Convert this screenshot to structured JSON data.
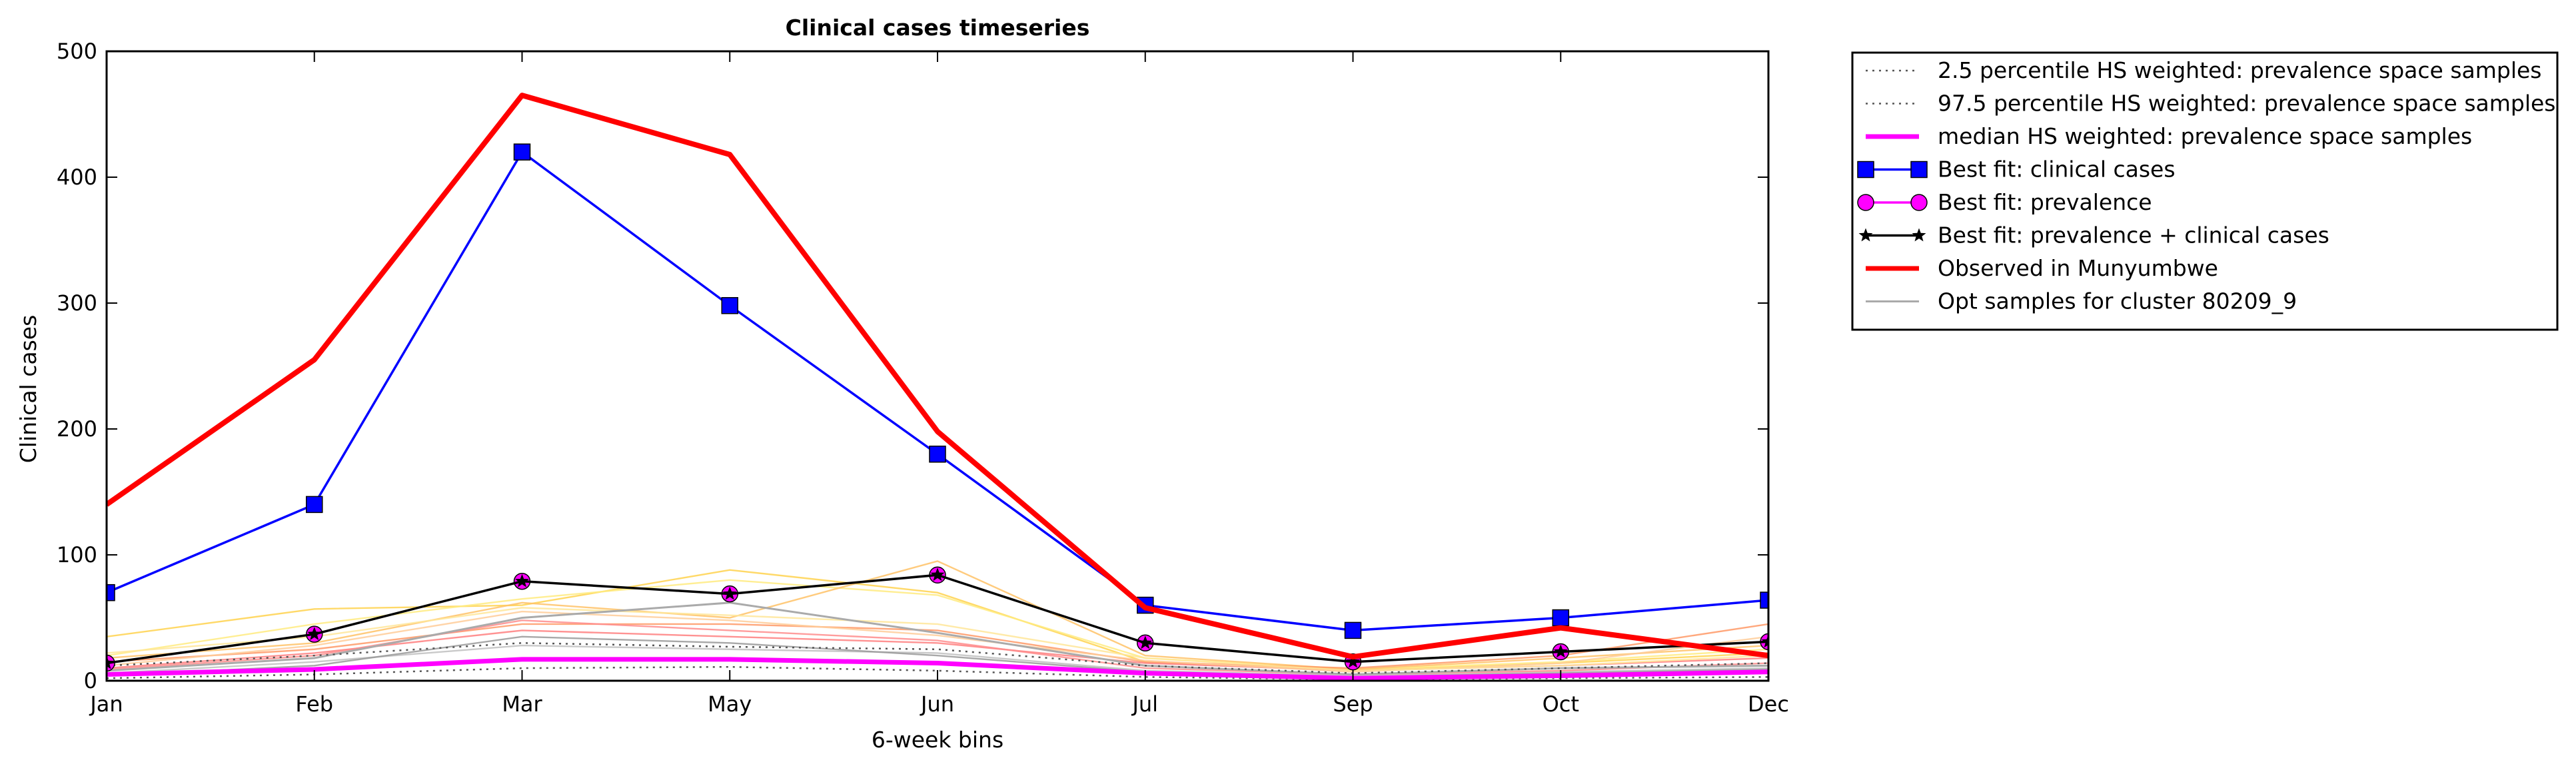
{
  "chart_data": {
    "type": "line",
    "title": "Clinical cases timeseries",
    "xlabel": "6-week bins",
    "ylabel": "Clinical cases",
    "categories": [
      "Jan",
      "Feb",
      "Mar",
      "May",
      "Jun",
      "Jul",
      "Sep",
      "Oct",
      "Dec"
    ],
    "ylim": [
      0,
      500
    ],
    "yticks": [
      0,
      100,
      200,
      300,
      400,
      500
    ],
    "grid": false,
    "legend_position": "outside-right",
    "series": [
      {
        "name": "2.5 percentile HS weighted: prevalence space samples",
        "style": "dotted",
        "color": "#555555",
        "values": [
          2,
          5,
          10,
          11,
          8,
          3,
          1,
          2,
          3
        ]
      },
      {
        "name": "97.5 percentile HS weighted: prevalence space samples",
        "style": "dotted",
        "color": "#555555",
        "values": [
          12,
          20,
          30,
          27,
          25,
          12,
          6,
          10,
          14
        ]
      },
      {
        "name": "median HS weighted: prevalence space samples",
        "style": "solid-thick",
        "color": "#ff00ff",
        "values": [
          5,
          9,
          17,
          17,
          14,
          6,
          2,
          4,
          7
        ]
      },
      {
        "name": "Best fit: clinical cases",
        "style": "square-markers",
        "color": "#0000ff",
        "values": [
          70,
          140,
          420,
          298,
          180,
          60,
          40,
          50,
          64
        ]
      },
      {
        "name": "Best fit: prevalence",
        "style": "circle-markers",
        "color": "#ff00ff",
        "values": [
          14,
          37,
          79,
          69,
          84,
          30,
          15,
          23,
          31
        ]
      },
      {
        "name": "Best fit: prevalence + clinical cases",
        "style": "star-markers",
        "color": "#000000",
        "values": [
          14,
          37,
          79,
          69,
          84,
          30,
          15,
          23,
          31
        ]
      },
      {
        "name": "Observed in Munyumbwe",
        "style": "solid-thick",
        "color": "#ff0000",
        "values": [
          140,
          255,
          465,
          418,
          198,
          58,
          19,
          42,
          20
        ]
      },
      {
        "name": "Opt samples for cluster 80209_9",
        "style": "thin",
        "color": "#aaaaaa",
        "values": [
          8,
          18,
          50,
          62,
          38,
          12,
          5,
          10,
          12
        ]
      }
    ],
    "sample_lines": [
      {
        "color": "#ffd24d",
        "values": [
          35,
          57,
          60,
          88,
          70,
          15,
          8,
          14,
          22
        ]
      },
      {
        "color": "#ffeb80",
        "values": [
          20,
          45,
          65,
          80,
          68,
          18,
          9,
          15,
          25
        ]
      },
      {
        "color": "#ffc266",
        "values": [
          18,
          30,
          62,
          50,
          95,
          20,
          9,
          18,
          28
        ]
      },
      {
        "color": "#ff9966",
        "values": [
          15,
          25,
          45,
          45,
          40,
          15,
          10,
          20,
          45
        ]
      },
      {
        "color": "#ff7f7f",
        "values": [
          10,
          22,
          40,
          35,
          30,
          14,
          8,
          12,
          18
        ]
      },
      {
        "color": "#ffcc99",
        "values": [
          12,
          28,
          55,
          48,
          36,
          16,
          7,
          14,
          35
        ]
      },
      {
        "color": "#c0c0c0",
        "values": [
          6,
          15,
          28,
          25,
          22,
          8,
          4,
          7,
          10
        ]
      },
      {
        "color": "#999999",
        "values": [
          4,
          12,
          35,
          30,
          20,
          7,
          3,
          6,
          9
        ]
      },
      {
        "color": "#ff8c8c",
        "values": [
          9,
          20,
          48,
          40,
          32,
          10,
          5,
          8,
          14
        ]
      },
      {
        "color": "#ffe699",
        "values": [
          22,
          35,
          58,
          52,
          45,
          18,
          8,
          12,
          20
        ]
      }
    ]
  }
}
